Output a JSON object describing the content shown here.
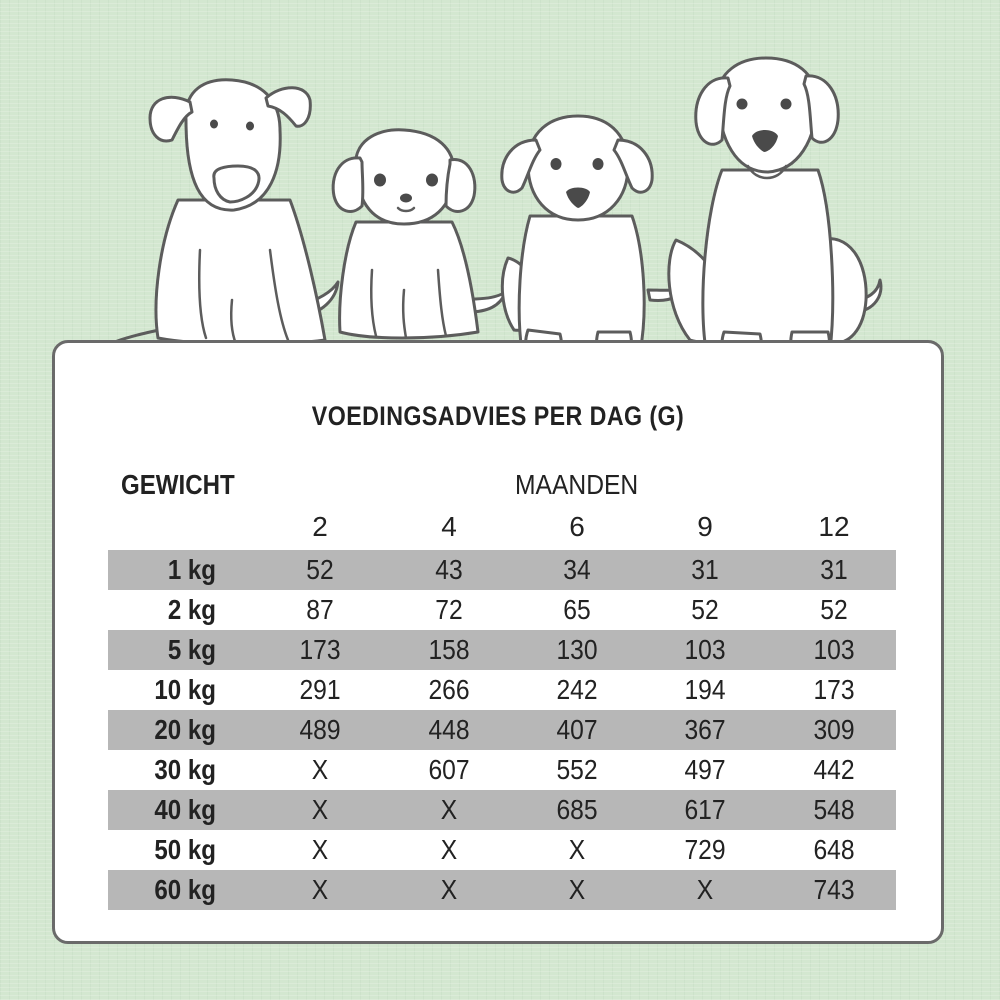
{
  "title": "VOEDINGSADVIES PER DAG (G)",
  "weight_header": "GEWICHT",
  "months_header": "MAANDEN",
  "months": [
    "2",
    "4",
    "6",
    "9",
    "12"
  ],
  "rows": [
    {
      "weight": "1 kg",
      "values": [
        "52",
        "43",
        "34",
        "31",
        "31"
      ]
    },
    {
      "weight": "2 kg",
      "values": [
        "87",
        "72",
        "65",
        "52",
        "52"
      ]
    },
    {
      "weight": "5 kg",
      "values": [
        "173",
        "158",
        "130",
        "103",
        "103"
      ]
    },
    {
      "weight": "10 kg",
      "values": [
        "291",
        "266",
        "242",
        "194",
        "173"
      ]
    },
    {
      "weight": "20 kg",
      "values": [
        "489",
        "448",
        "407",
        "367",
        "309"
      ]
    },
    {
      "weight": "30 kg",
      "values": [
        "X",
        "607",
        "552",
        "497",
        "442"
      ]
    },
    {
      "weight": "40 kg",
      "values": [
        "X",
        "X",
        "685",
        "617",
        "548"
      ]
    },
    {
      "weight": "50 kg",
      "values": [
        "X",
        "X",
        "X",
        "729",
        "648"
      ]
    },
    {
      "weight": "60 kg",
      "values": [
        "X",
        "X",
        "X",
        "X",
        "743"
      ]
    }
  ],
  "colors": {
    "background": "#d3e7d0",
    "shaded_row": "#b7b7b7",
    "outline": "#5c5c5c"
  },
  "illustration": [
    "terrier-dog-icon",
    "poodle-puppy-icon",
    "labrador-puppy-icon",
    "large-puppy-icon"
  ]
}
